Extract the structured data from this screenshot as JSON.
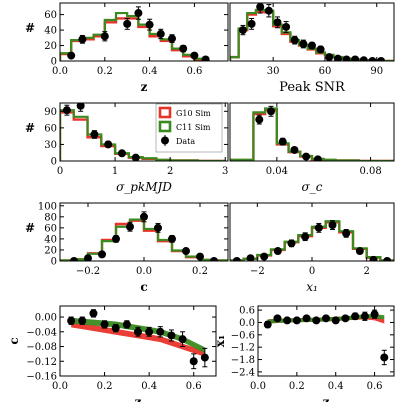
{
  "colors": {
    "g10": "#e8332a",
    "c11": "#3a8a1f",
    "data": "#000000",
    "frame": "#000000"
  },
  "chart_data": [
    {
      "id": "z-hist",
      "type": "histogram",
      "xlabel": "z",
      "ylabel": "#",
      "xlim": [
        0,
        0.75
      ],
      "ylim": [
        0,
        75
      ],
      "xticks": [
        "0.0",
        "0.2",
        "0.4",
        "0.6"
      ],
      "xtick_values": [
        0,
        0.2,
        0.4,
        0.6
      ],
      "yticks": [
        "0",
        "20",
        "40",
        "60"
      ],
      "ytick_values": [
        0,
        20,
        40,
        60
      ],
      "bins": [
        0,
        0.05,
        0.1,
        0.15,
        0.2,
        0.25,
        0.3,
        0.35,
        0.4,
        0.45,
        0.5,
        0.55,
        0.6,
        0.65
      ],
      "series": [
        {
          "name": "G10 Sim",
          "values": [
            9,
            26,
            28,
            32,
            50,
            55,
            55,
            44,
            32,
            26,
            14,
            6,
            2
          ]
        },
        {
          "name": "C11 Sim",
          "values": [
            10,
            27,
            30,
            34,
            53,
            62,
            58,
            47,
            35,
            28,
            16,
            8,
            3
          ]
        }
      ],
      "data": {
        "name": "Data",
        "x": [
          0.05,
          0.1,
          0.2,
          0.3,
          0.35,
          0.4,
          0.45,
          0.5,
          0.55,
          0.6,
          0.65
        ],
        "y": [
          7,
          28,
          32,
          48,
          62,
          47,
          35,
          29,
          16,
          7,
          2
        ],
        "err": [
          3,
          5,
          6,
          7,
          8,
          7,
          6,
          5,
          4,
          3,
          2
        ]
      }
    },
    {
      "id": "snr-hist",
      "type": "histogram",
      "xlabel": "Peak SNR",
      "ylabel": "",
      "xlim": [
        5,
        100
      ],
      "ylim": [
        0,
        75
      ],
      "xticks": [
        "30",
        "60",
        "90"
      ],
      "xtick_values": [
        30,
        60,
        90
      ],
      "yticks": [],
      "ytick_values": [],
      "bins": [
        5,
        10,
        15,
        20,
        25,
        30,
        35,
        40,
        45,
        50,
        55,
        60,
        65,
        70,
        75,
        80,
        85,
        90,
        95,
        100
      ],
      "series": [
        {
          "name": "G10 Sim",
          "values": [
            5,
            40,
            60,
            64,
            63,
            45,
            35,
            25,
            20,
            15,
            10,
            7,
            5,
            3,
            2,
            1,
            1,
            0,
            0
          ]
        },
        {
          "name": "C11 Sim",
          "values": [
            5,
            42,
            62,
            66,
            65,
            47,
            37,
            27,
            21,
            16,
            11,
            8,
            5,
            3,
            2,
            1,
            1,
            0,
            0
          ]
        }
      ],
      "data": {
        "name": "Data",
        "x": [
          12.5,
          17.5,
          22.5,
          27.5,
          32.5,
          37.5,
          42.5,
          47.5,
          52.5,
          57.5,
          62.5,
          67.5,
          72.5,
          77.5,
          82.5,
          87.5,
          92.5
        ],
        "y": [
          40,
          48,
          70,
          65,
          50,
          44,
          27,
          22,
          20,
          15,
          5,
          3,
          2,
          2,
          1,
          0,
          0
        ],
        "err": [
          6,
          7,
          8,
          8,
          7,
          7,
          5,
          5,
          4,
          4,
          2,
          2,
          1,
          1,
          1,
          0,
          0
        ]
      }
    },
    {
      "id": "sigma-pkmjd-hist",
      "type": "histogram",
      "xlabel": "σ_pkMJD",
      "ylabel": "#",
      "xlim": [
        0,
        3.05
      ],
      "ylim": [
        0,
        105
      ],
      "xticks": [
        "0",
        "1",
        "2",
        "3"
      ],
      "xtick_values": [
        0,
        1,
        2,
        3
      ],
      "yticks": [
        "0",
        "30",
        "60",
        "90"
      ],
      "ytick_values": [
        0,
        30,
        60,
        90
      ],
      "bins": [
        0,
        0.25,
        0.5,
        0.75,
        1.0,
        1.25,
        1.5,
        1.75,
        2.0,
        2.25,
        2.5,
        2.75,
        3.0
      ],
      "series": [
        {
          "name": "G10 Sim",
          "values": [
            88,
            75,
            43,
            27,
            13,
            6,
            4,
            2,
            1,
            1,
            0,
            0
          ]
        },
        {
          "name": "C11 Sim",
          "values": [
            92,
            80,
            48,
            30,
            14,
            7,
            5,
            2,
            1,
            1,
            0,
            0
          ]
        }
      ],
      "data": {
        "name": "Data",
        "x": [
          0.125,
          0.375,
          0.625,
          0.875,
          1.125,
          1.375
        ],
        "y": [
          92,
          100,
          48,
          30,
          14,
          6
        ],
        "err": [
          9,
          10,
          7,
          5,
          4,
          3
        ]
      }
    },
    {
      "id": "sigma-c-hist",
      "type": "histogram",
      "xlabel": "σ_c",
      "ylabel": "",
      "xlim": [
        0.02,
        0.09
      ],
      "ylim": [
        0,
        105
      ],
      "xticks": [
        "0.04",
        "0.08"
      ],
      "xtick_values": [
        0.04,
        0.08
      ],
      "yticks": [],
      "ytick_values": [],
      "bins": [
        0.02,
        0.03,
        0.035,
        0.04,
        0.045,
        0.05,
        0.055,
        0.06,
        0.065,
        0.07,
        0.075,
        0.08,
        0.085,
        0.09
      ],
      "series": [
        {
          "name": "G10 Sim",
          "values": [
            2,
            85,
            92,
            30,
            16,
            8,
            3,
            2,
            1,
            1,
            0,
            0,
            0
          ]
        },
        {
          "name": "C11 Sim",
          "values": [
            2,
            88,
            95,
            32,
            17,
            9,
            4,
            2,
            1,
            1,
            0,
            0,
            0
          ]
        }
      ],
      "data": {
        "name": "Data",
        "x": [
          0.0325,
          0.0375,
          0.0425,
          0.0475,
          0.0525,
          0.0575
        ],
        "y": [
          75,
          90,
          35,
          20,
          8,
          3
        ],
        "err": [
          8,
          9,
          6,
          4,
          3,
          2
        ]
      }
    },
    {
      "id": "c-hist",
      "type": "histogram",
      "xlabel": "c",
      "ylabel": "#",
      "xlim": [
        -0.3,
        0.3
      ],
      "ylim": [
        0,
        105
      ],
      "xticks": [
        "−0.2",
        "0.0",
        "0.2"
      ],
      "xtick_values": [
        -0.2,
        0,
        0.2
      ],
      "yticks": [
        "0",
        "20",
        "40",
        "60",
        "80",
        "100"
      ],
      "ytick_values": [
        0,
        20,
        40,
        60,
        80,
        100
      ],
      "bins": [
        -0.3,
        -0.25,
        -0.2,
        -0.15,
        -0.1,
        -0.05,
        0.0,
        0.05,
        0.1,
        0.15,
        0.2,
        0.25,
        0.3
      ],
      "series": [
        {
          "name": "G10 Sim",
          "values": [
            1,
            3,
            14,
            38,
            67,
            73,
            55,
            36,
            18,
            7,
            2,
            1
          ]
        },
        {
          "name": "C11 Sim",
          "values": [
            1,
            3,
            13,
            36,
            62,
            75,
            58,
            38,
            19,
            8,
            2,
            1
          ]
        }
      ],
      "data": {
        "name": "Data",
        "x": [
          -0.25,
          -0.2,
          -0.15,
          -0.1,
          -0.05,
          0.0,
          0.05,
          0.1,
          0.15,
          0.2,
          0.25
        ],
        "y": [
          0,
          5,
          12,
          40,
          62,
          80,
          60,
          40,
          18,
          8,
          0
        ],
        "err": [
          0,
          2,
          3,
          6,
          8,
          9,
          8,
          6,
          4,
          3,
          0
        ]
      }
    },
    {
      "id": "x1-hist",
      "type": "histogram",
      "xlabel": "x₁",
      "ylabel": "",
      "xlim": [
        -3,
        3
      ],
      "ylim": [
        0,
        105
      ],
      "xticks": [
        "−2",
        "0",
        "2"
      ],
      "xtick_values": [
        -2,
        0,
        2
      ],
      "yticks": [],
      "ytick_values": [],
      "bins": [
        -3,
        -2.5,
        -2,
        -1.5,
        -1,
        -0.5,
        0,
        0.5,
        1,
        1.5,
        2,
        2.5,
        3
      ],
      "series": [
        {
          "name": "G10 Sim",
          "values": [
            1,
            4,
            10,
            20,
            34,
            45,
            60,
            70,
            52,
            22,
            6,
            1
          ]
        },
        {
          "name": "C11 Sim",
          "values": [
            1,
            4,
            11,
            21,
            35,
            47,
            62,
            72,
            54,
            23,
            7,
            1
          ]
        }
      ],
      "data": {
        "name": "Data",
        "x": [
          -2.75,
          -2.25,
          -1.75,
          -1.25,
          -0.75,
          -0.25,
          0.25,
          0.75,
          1.25,
          1.75,
          2.25,
          2.75
        ],
        "y": [
          0,
          5,
          8,
          18,
          32,
          44,
          60,
          65,
          50,
          18,
          2,
          0
        ],
        "err": [
          0,
          2,
          3,
          4,
          6,
          7,
          8,
          8,
          7,
          4,
          1,
          0
        ]
      }
    },
    {
      "id": "c-vs-z",
      "type": "line",
      "xlabel": "z",
      "ylabel": "c",
      "xlim": [
        0,
        0.7
      ],
      "ylim": [
        -0.16,
        0.03
      ],
      "xticks": [
        "0.0",
        "0.2",
        "0.4",
        "0.6"
      ],
      "xtick_values": [
        0,
        0.2,
        0.4,
        0.6
      ],
      "yticks": [
        "0.00",
        "−0.04",
        "−0.08",
        "−0.12",
        "−0.16"
      ],
      "ytick_values": [
        0,
        -0.04,
        -0.08,
        -0.12,
        -0.16
      ],
      "series": [
        {
          "name": "G10 Sim",
          "x": [
            0.05,
            0.15,
            0.25,
            0.35,
            0.45,
            0.55,
            0.6,
            0.65
          ],
          "y": [
            -0.02,
            -0.03,
            -0.04,
            -0.05,
            -0.06,
            -0.08,
            -0.09,
            -0.1
          ],
          "band": 0.008
        },
        {
          "name": "C11 Sim",
          "x": [
            0.05,
            0.15,
            0.25,
            0.35,
            0.45,
            0.55,
            0.6,
            0.65
          ],
          "y": [
            -0.01,
            -0.015,
            -0.02,
            -0.03,
            -0.04,
            -0.06,
            -0.075,
            -0.09
          ],
          "band": 0.008
        }
      ],
      "data": {
        "name": "Data",
        "x": [
          0.05,
          0.1,
          0.15,
          0.2,
          0.25,
          0.3,
          0.35,
          0.4,
          0.45,
          0.5,
          0.55,
          0.6,
          0.65
        ],
        "y": [
          -0.01,
          -0.01,
          0.01,
          -0.02,
          -0.03,
          -0.02,
          -0.04,
          -0.04,
          -0.04,
          -0.05,
          -0.06,
          -0.12,
          -0.11
        ],
        "err": [
          0.01,
          0.01,
          0.01,
          0.01,
          0.01,
          0.01,
          0.012,
          0.012,
          0.014,
          0.015,
          0.02,
          0.02,
          0.025
        ]
      }
    },
    {
      "id": "x1-vs-z",
      "type": "line",
      "xlabel": "z",
      "ylabel": "x₁",
      "xlim": [
        0,
        0.7
      ],
      "ylim": [
        -2.6,
        0.8
      ],
      "xticks": [
        "0.0",
        "0.2",
        "0.4",
        "0.6"
      ],
      "xtick_values": [
        0,
        0.2,
        0.4,
        0.6
      ],
      "yticks": [
        "0.6",
        "0.0",
        "−0.6",
        "−1.2",
        "−1.8",
        "−2.4"
      ],
      "ytick_values": [
        0.6,
        0,
        -0.6,
        -1.2,
        -1.8,
        -2.4
      ],
      "series": [
        {
          "name": "G10 Sim",
          "x": [
            0.05,
            0.15,
            0.25,
            0.35,
            0.45,
            0.55,
            0.6,
            0.65
          ],
          "y": [
            0.05,
            0.1,
            0.12,
            0.15,
            0.2,
            0.25,
            0.2,
            0.05
          ],
          "band": 0.1
        },
        {
          "name": "C11 Sim",
          "x": [
            0.05,
            0.15,
            0.25,
            0.35,
            0.45,
            0.55,
            0.6,
            0.65
          ],
          "y": [
            0.05,
            0.1,
            0.12,
            0.15,
            0.2,
            0.3,
            0.3,
            0.25
          ],
          "band": 0.1
        }
      ],
      "data": {
        "name": "Data",
        "x": [
          0.05,
          0.1,
          0.15,
          0.2,
          0.25,
          0.3,
          0.35,
          0.4,
          0.45,
          0.5,
          0.55,
          0.6,
          0.65
        ],
        "y": [
          -0.1,
          0.2,
          0.1,
          0.1,
          0.2,
          0.1,
          0.2,
          0.1,
          0.2,
          0.3,
          0.3,
          0.4,
          -1.7
        ],
        "err": [
          0.15,
          0.1,
          0.1,
          0.1,
          0.1,
          0.1,
          0.1,
          0.1,
          0.1,
          0.15,
          0.2,
          0.2,
          0.35
        ]
      }
    }
  ],
  "legend": {
    "items": [
      {
        "label": "G10 Sim",
        "kind": "box",
        "color": "#e8332a"
      },
      {
        "label": "C11 Sim",
        "kind": "box",
        "color": "#3a8a1f"
      },
      {
        "label": "Data",
        "kind": "marker",
        "color": "#000000"
      }
    ]
  }
}
